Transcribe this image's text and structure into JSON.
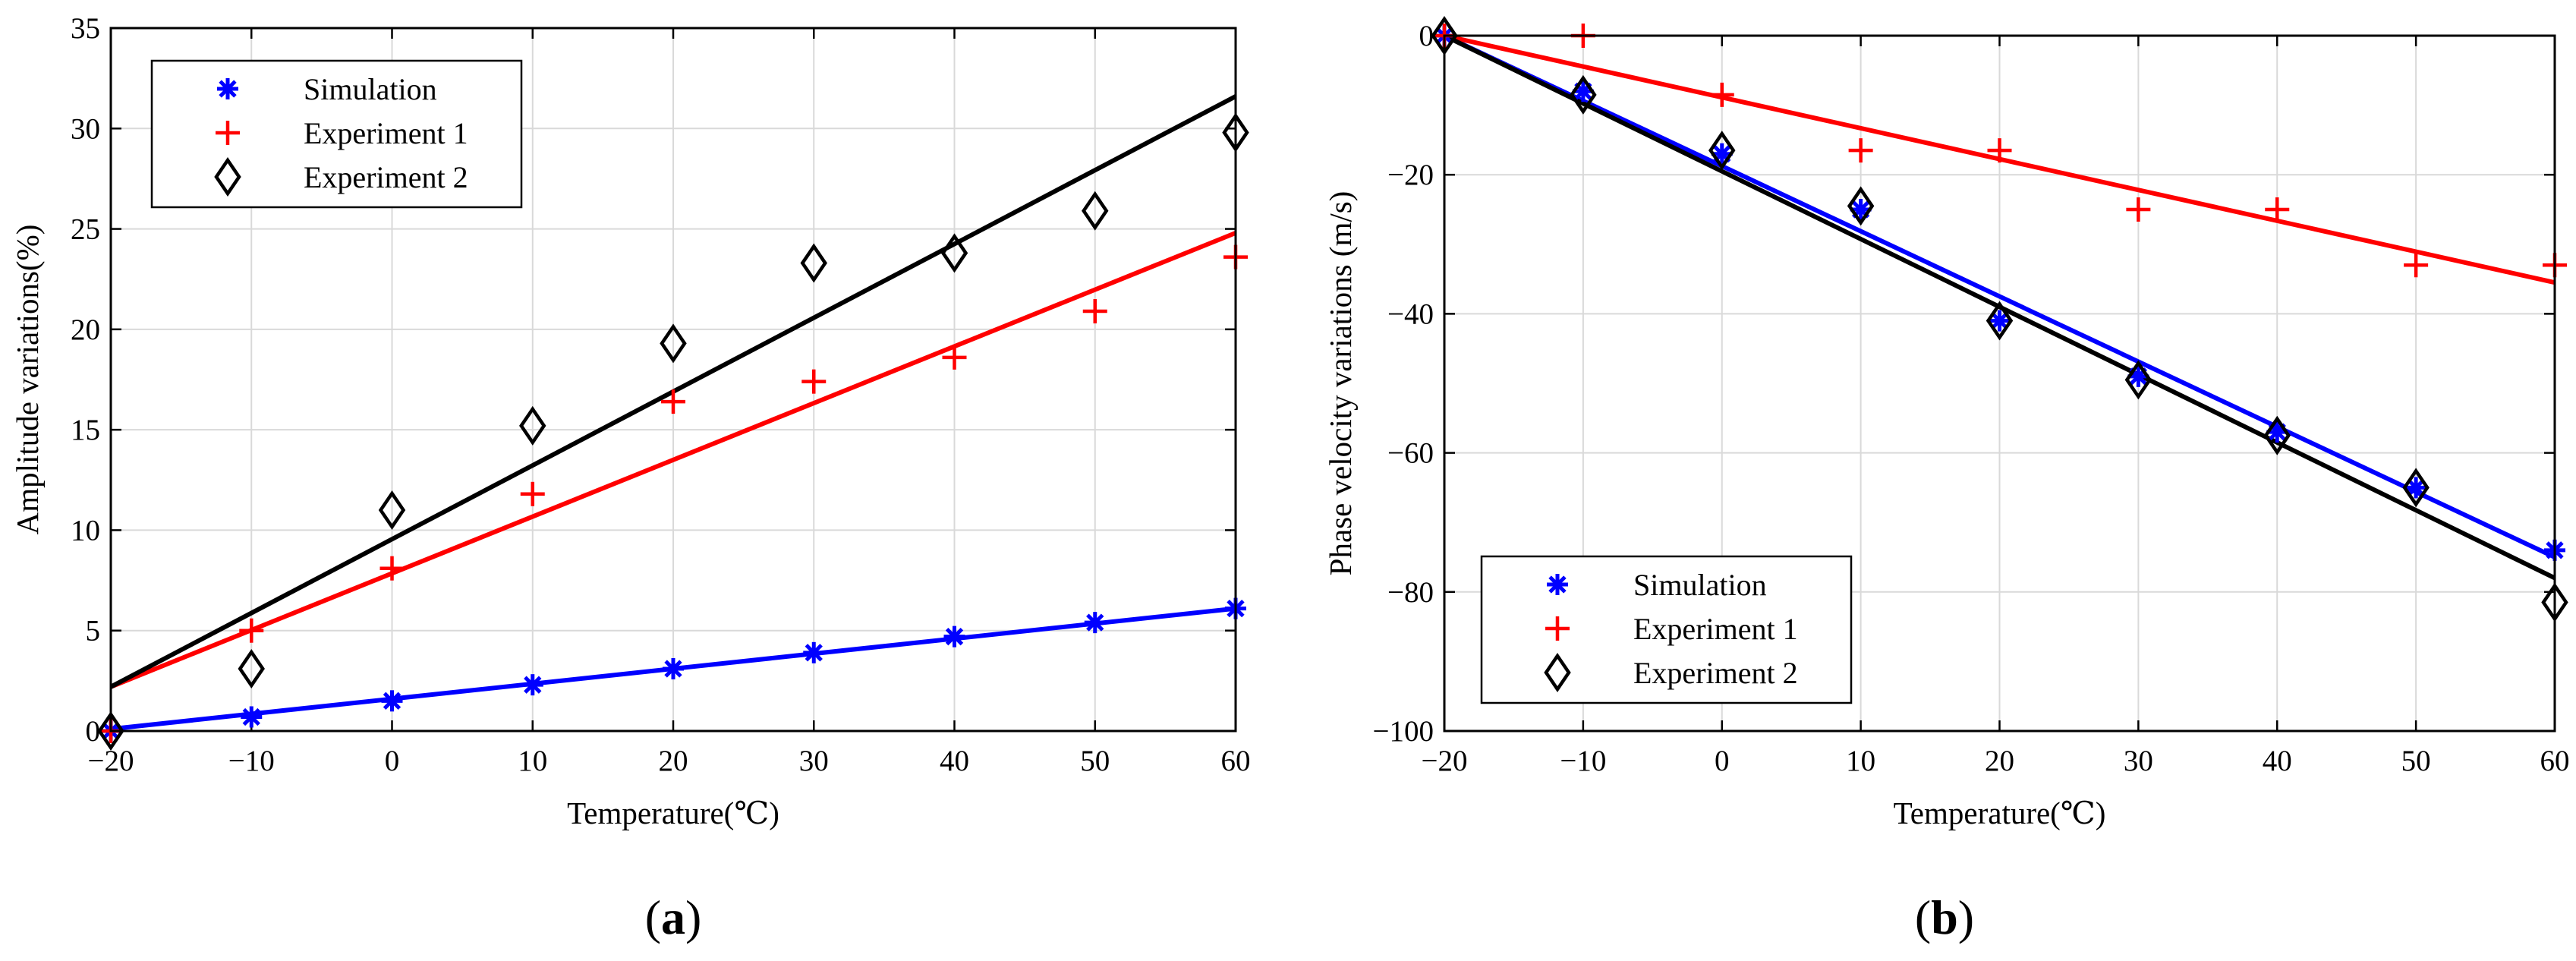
{
  "chart_data": [
    {
      "type": "scatter",
      "panel_label": "(a)",
      "panel_letter": "a",
      "xlabel": "Temperature(℃)",
      "ylabel": "Amplitude variations(%)",
      "xlim": [
        -20,
        60
      ],
      "ylim": [
        0,
        35
      ],
      "xticks": [
        "−20",
        "−10",
        "0",
        "10",
        "20",
        "30",
        "40",
        "50",
        "60"
      ],
      "yticks": [
        "0",
        "5",
        "10",
        "15",
        "20",
        "25",
        "30",
        "35"
      ],
      "grid": true,
      "legend_position": "top-left",
      "x": [
        -20,
        -10,
        0,
        10,
        20,
        30,
        40,
        50,
        60
      ],
      "series": [
        {
          "name": "Simulation",
          "marker": "asterisk",
          "color": "#0000ff",
          "values": [
            0,
            0.7,
            1.5,
            2.3,
            3.1,
            3.9,
            4.7,
            5.4,
            6.1
          ],
          "fit": [
            0.1,
            6.1
          ]
        },
        {
          "name": "Experiment 1",
          "marker": "plus",
          "color": "#ff0000",
          "values": [
            0,
            5.0,
            8.1,
            11.8,
            16.4,
            17.4,
            18.6,
            20.9,
            23.6
          ],
          "fit": [
            2.2,
            24.8
          ]
        },
        {
          "name": "Experiment 2",
          "marker": "diamond",
          "color": "#000000",
          "values": [
            0,
            3.1,
            11.0,
            15.2,
            19.3,
            23.3,
            23.8,
            25.9,
            29.8
          ],
          "fit": [
            2.2,
            31.6
          ]
        }
      ]
    },
    {
      "type": "scatter",
      "panel_label": "(b)",
      "panel_letter": "b",
      "xlabel": "Temperature(℃)",
      "ylabel": "Phase velocity variations (m/s)",
      "xlim": [
        -20,
        60
      ],
      "ylim": [
        -100,
        0
      ],
      "xticks": [
        "−20",
        "−10",
        "0",
        "10",
        "20",
        "30",
        "40",
        "50",
        "60"
      ],
      "yticks": [
        "−100",
        "−80",
        "−60",
        "−40",
        "−20",
        "0"
      ],
      "grid": true,
      "legend_position": "bottom-left",
      "x": [
        -20,
        -10,
        0,
        10,
        20,
        30,
        40,
        50,
        60
      ],
      "series": [
        {
          "name": "Simulation",
          "marker": "asterisk",
          "color": "#0000ff",
          "values": [
            0,
            -8,
            -17,
            -25,
            -41,
            -49,
            -57,
            -65,
            -74
          ],
          "fit": [
            0,
            -75
          ]
        },
        {
          "name": "Experiment 1",
          "marker": "plus",
          "color": "#ff0000",
          "values": [
            0,
            0,
            -8.5,
            -16.5,
            -16.5,
            -25,
            -25,
            -33,
            -33
          ],
          "fit": [
            0,
            -35.5
          ]
        },
        {
          "name": "Experiment 2",
          "marker": "diamond",
          "color": "#000000",
          "values": [
            0,
            -8.5,
            -16.5,
            -24.5,
            -41,
            -49.5,
            -57.5,
            -65,
            -81.5
          ],
          "fit": [
            0,
            -78
          ]
        }
      ]
    }
  ]
}
